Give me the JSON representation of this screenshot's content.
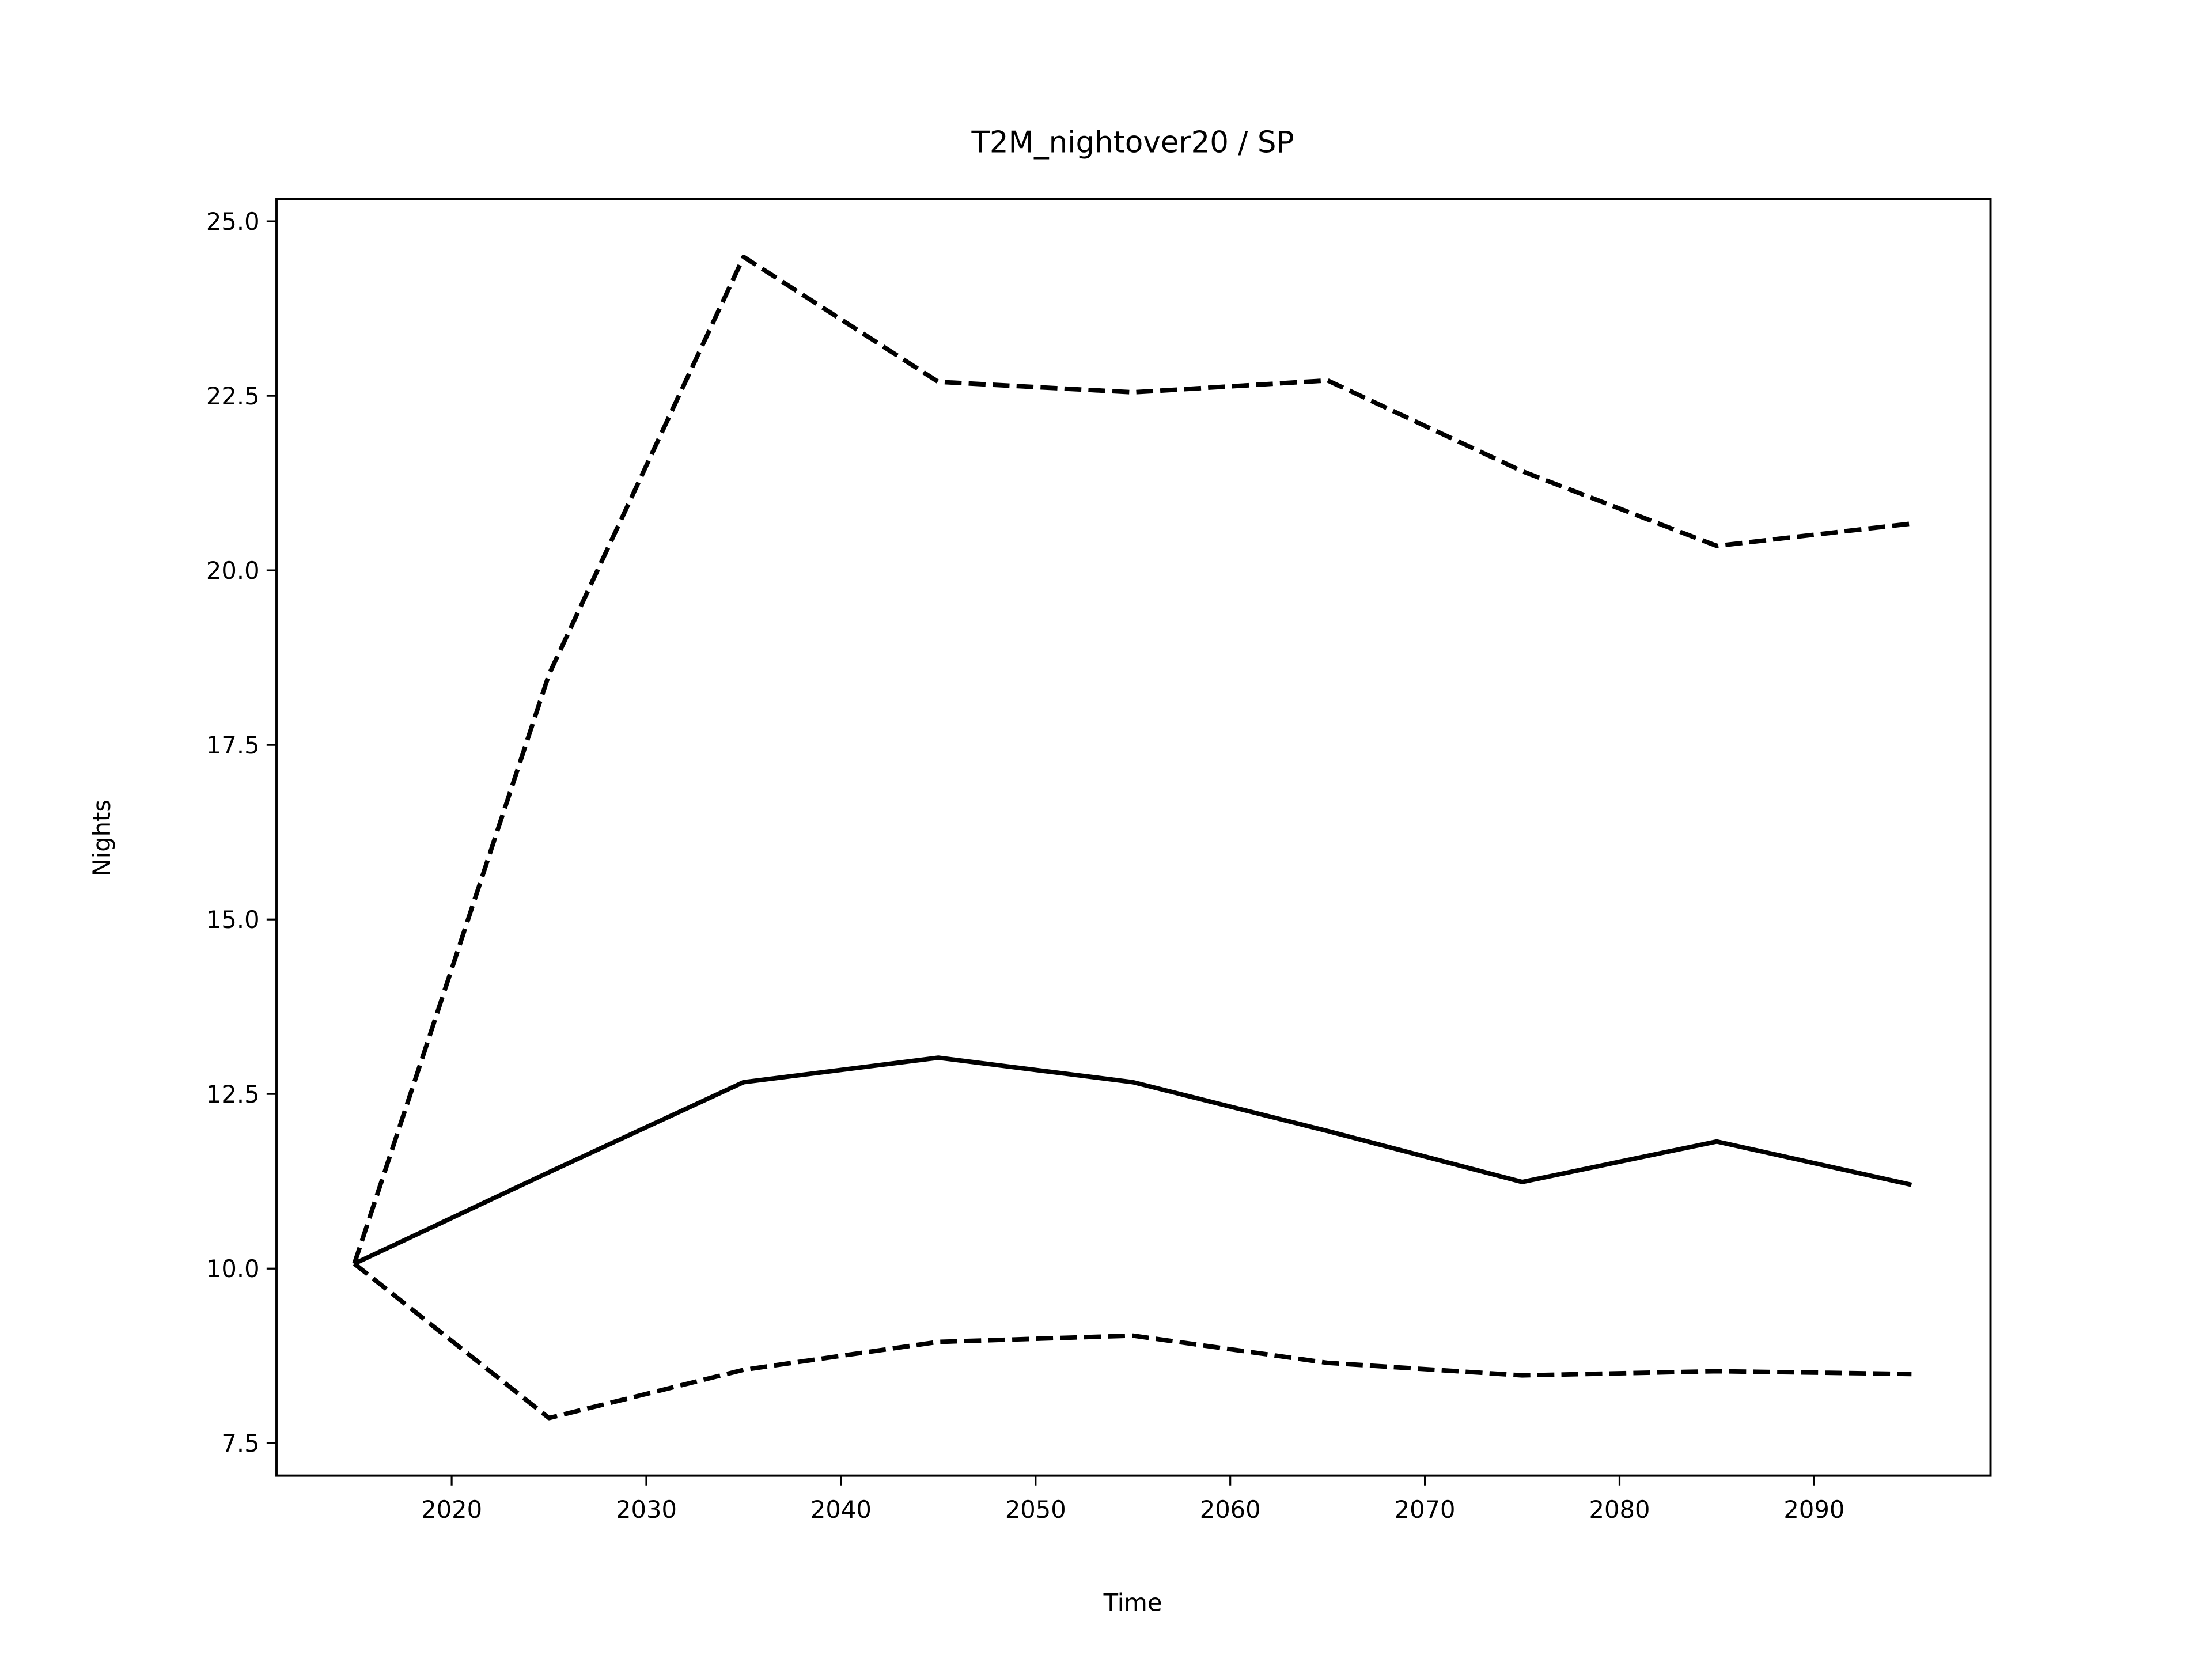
{
  "chart_data": {
    "type": "line",
    "title": "T2M_nightover20 / SP",
    "xlabel": "Time",
    "ylabel": "Nights",
    "x": [
      2015,
      2025,
      2035,
      2045,
      2055,
      2065,
      2075,
      2085,
      2095
    ],
    "series": [
      {
        "color": "#000000",
        "linestyle": "solid",
        "values": [
          10.07,
          11.38,
          12.67,
          13.02,
          12.67,
          11.97,
          11.24,
          11.82,
          11.2
        ]
      },
      {
        "color": "#000000",
        "linestyle": "dashed",
        "values": [
          10.07,
          18.51,
          24.49,
          22.7,
          22.55,
          22.72,
          21.42,
          20.35,
          20.67
        ]
      },
      {
        "color": "#000000",
        "linestyle": "dashed",
        "values": [
          10.07,
          7.86,
          8.55,
          8.95,
          9.04,
          8.65,
          8.47,
          8.53,
          8.49
        ]
      }
    ],
    "xlim": [
      2011.0,
      2099.06
    ],
    "ylim": [
      7.035,
      25.32
    ],
    "xticks": [
      2020,
      2030,
      2040,
      2050,
      2060,
      2070,
      2080,
      2090
    ],
    "yticks": [
      7.5,
      {
        "value": 10,
        "label": "10.0"
      },
      12.5,
      {
        "value": 15,
        "label": "15.0"
      },
      17.5,
      {
        "value": 20,
        "label": "20.0"
      },
      22.5,
      {
        "value": 25,
        "label": "25.0"
      }
    ],
    "grid": false
  }
}
